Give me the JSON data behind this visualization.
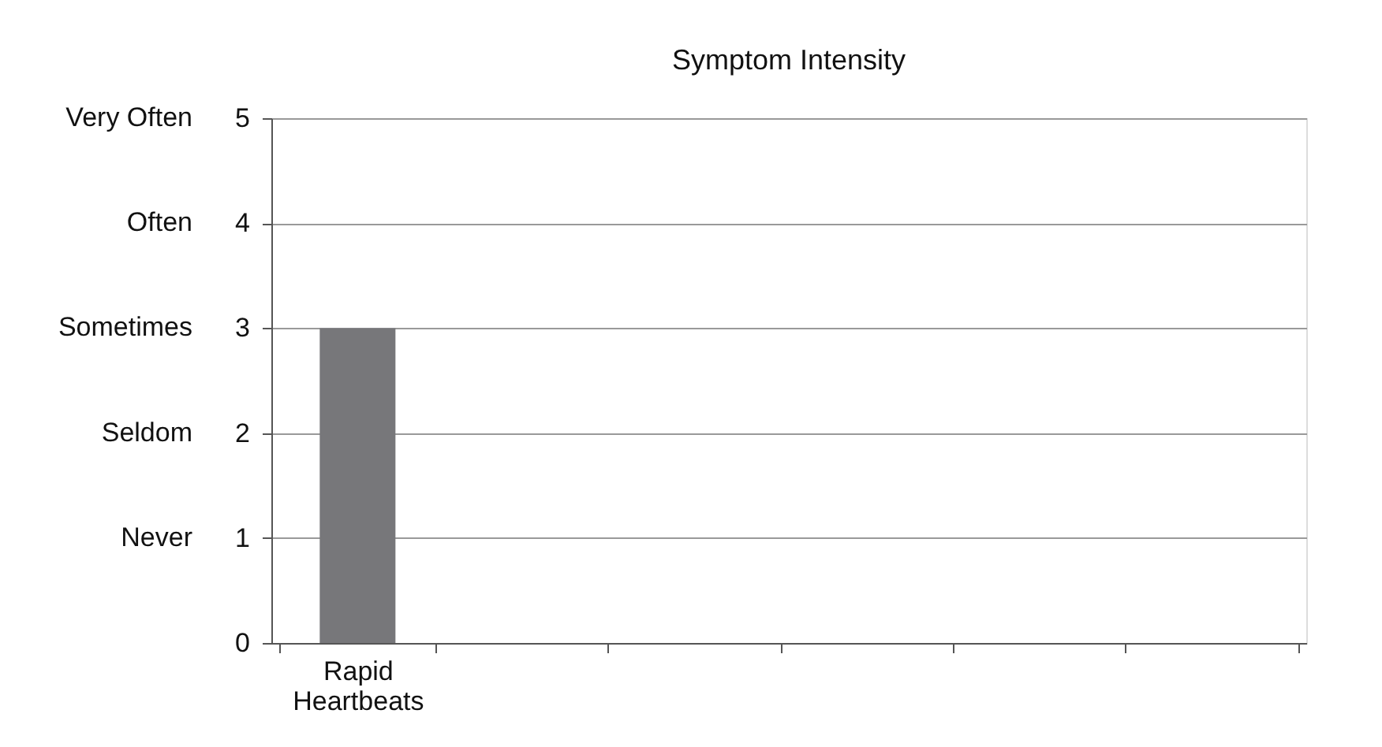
{
  "chart_data": {
    "type": "bar",
    "title": "Symptom Intensity",
    "categories": [
      "Rapid Heartbeats",
      null,
      null,
      null,
      null,
      null
    ],
    "values": [
      3,
      null,
      null,
      null,
      null,
      null
    ],
    "color": "#77777a",
    "ylim": [
      0,
      5
    ],
    "yticks": [
      0,
      1,
      2,
      3,
      4,
      5
    ],
    "annotations": [
      "Never",
      "Seldom",
      "Sometimes",
      "Often",
      "Very Often"
    ],
    "grid": "y"
  }
}
